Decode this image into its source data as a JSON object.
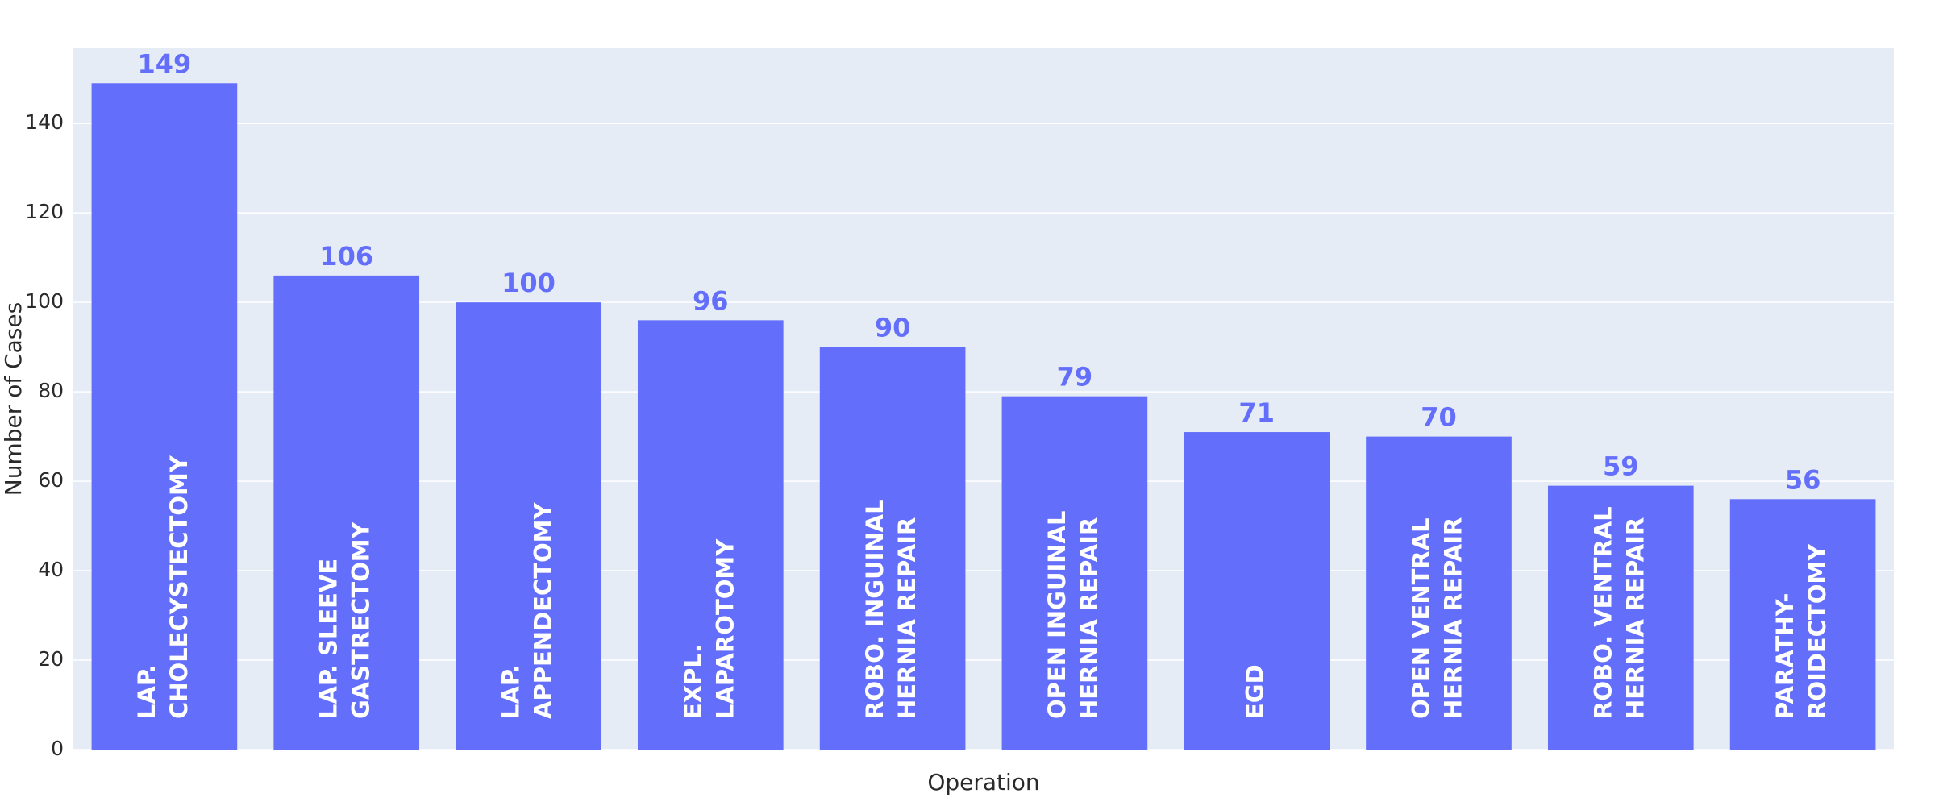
{
  "chart_data": {
    "type": "bar",
    "x_label": "Operation",
    "y_label": "Number of Cases",
    "categories": [
      [
        "LAP.",
        "CHOLECYSTECTOMY"
      ],
      [
        "LAP. SLEEVE",
        "GASTRECTOMY"
      ],
      [
        "LAP.",
        "APPENDECTOMY"
      ],
      [
        "EXPL.",
        "LAPAROTOMY"
      ],
      [
        "ROBO. INGUINAL",
        "HERNIA REPAIR"
      ],
      [
        "OPEN INGUINAL",
        "HERNIA REPAIR"
      ],
      [
        "EGD"
      ],
      [
        "OPEN VENTRAL",
        "HERNIA REPAIR"
      ],
      [
        "ROBO. VENTRAL",
        "HERNIA REPAIR"
      ],
      [
        "PARATHY-",
        "ROIDECTOMY"
      ]
    ],
    "values": [
      149,
      106,
      100,
      96,
      90,
      79,
      71,
      70,
      59,
      56
    ],
    "color": "#636efa",
    "ylim": [
      0,
      156.8
    ],
    "yticks": [
      0,
      20,
      40,
      60,
      80,
      100,
      120,
      140
    ],
    "grid": true
  }
}
